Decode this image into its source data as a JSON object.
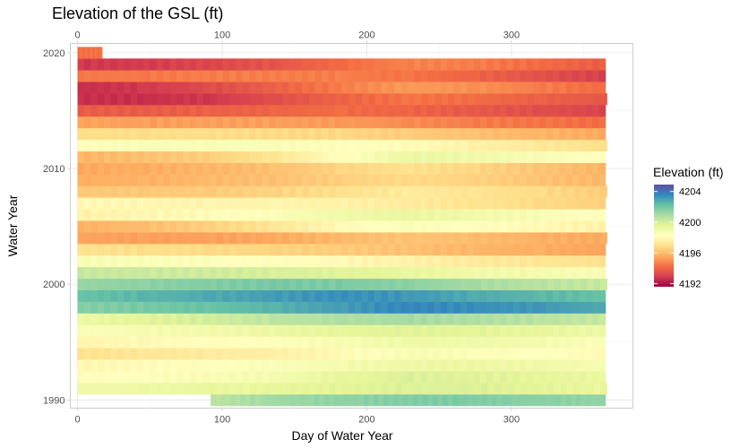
{
  "chart_data": {
    "type": "heatmap",
    "title": "Elevation of the GSL (ft)",
    "xlabel": "Day of Water Year",
    "ylabel": "Water Year",
    "x_ticks": [
      0,
      100,
      200,
      300
    ],
    "y_ticks": [
      1990,
      2000,
      2010,
      2020
    ],
    "xlim": [
      -5,
      384
    ],
    "ylim": [
      1989.3,
      2020.8
    ],
    "grid": true,
    "secondary_x_axis_top": true,
    "legend": {
      "title": "Elevation (ft)",
      "placement": "right",
      "ticks": [
        4192,
        4196,
        4200,
        4204
      ],
      "range": [
        4191.6,
        4204.9
      ],
      "palette": [
        "#9e0142",
        "#d53e4f",
        "#f46d43",
        "#fdae61",
        "#fee08b",
        "#ffffbf",
        "#e6f598",
        "#abdda4",
        "#66c2a5",
        "#3288bd",
        "#5e4fa2"
      ]
    },
    "series": [
      {
        "year": 1990,
        "start_day": 92,
        "end_day": 365,
        "values": [
          4200.5,
          4201.0,
          4201.3,
          4201.5,
          4201.7,
          4201.8,
          4201.6,
          4201.5,
          4201.4
        ]
      },
      {
        "year": 1991,
        "start_day": 0,
        "end_day": 366,
        "values": [
          4199.0,
          4199.1,
          4199.3,
          4199.4,
          4199.6,
          4199.8,
          4199.8,
          4199.6,
          4199.3
        ]
      },
      {
        "year": 1992,
        "start_day": 0,
        "end_day": 365,
        "values": [
          4198.2,
          4198.4,
          4198.6,
          4198.8,
          4199.4,
          4199.8,
          4199.7,
          4199.5,
          4199.3
        ]
      },
      {
        "year": 1993,
        "start_day": 0,
        "end_day": 365,
        "values": [
          4197.9,
          4198.1,
          4198.3,
          4198.5,
          4198.8,
          4199.1,
          4199.2,
          4199.0,
          4198.7
        ]
      },
      {
        "year": 1994,
        "start_day": 0,
        "end_day": 365,
        "values": [
          4197.0,
          4197.2,
          4197.4,
          4197.6,
          4198.0,
          4198.6,
          4198.5,
          4198.3,
          4198.0
        ]
      },
      {
        "year": 1995,
        "start_day": 0,
        "end_day": 365,
        "values": [
          4197.8,
          4198.0,
          4198.2,
          4198.4,
          4198.7,
          4199.0,
          4199.0,
          4198.8,
          4198.5
        ]
      },
      {
        "year": 1996,
        "start_day": 0,
        "end_day": 365,
        "values": [
          4198.5,
          4198.7,
          4198.9,
          4199.2,
          4199.5,
          4199.7,
          4199.6,
          4199.4,
          4199.1
        ]
      },
      {
        "year": 1997,
        "start_day": 0,
        "end_day": 365,
        "values": [
          4199.2,
          4199.6,
          4200.0,
          4200.5,
          4200.8,
          4201.0,
          4200.8,
          4200.6,
          4200.3
        ]
      },
      {
        "year": 1998,
        "start_day": 0,
        "end_day": 365,
        "values": [
          4201.6,
          4201.9,
          4202.2,
          4202.6,
          4203.1,
          4203.6,
          4203.4,
          4203.2,
          4202.8
        ]
      },
      {
        "year": 1999,
        "start_day": 0,
        "end_day": 365,
        "values": [
          4202.2,
          4202.5,
          4202.8,
          4203.1,
          4203.4,
          4203.2,
          4202.8,
          4202.5,
          4202.2
        ]
      },
      {
        "year": 2000,
        "start_day": 0,
        "end_day": 366,
        "values": [
          4201.3,
          4201.5,
          4201.7,
          4201.9,
          4201.8,
          4201.5,
          4201.0,
          4200.6,
          4200.3
        ]
      },
      {
        "year": 2001,
        "start_day": 0,
        "end_day": 365,
        "values": [
          4200.3,
          4200.2,
          4200.1,
          4199.9,
          4199.7,
          4199.4,
          4199.0,
          4198.8,
          4198.6
        ]
      },
      {
        "year": 2002,
        "start_day": 0,
        "end_day": 365,
        "values": [
          4198.6,
          4198.5,
          4198.4,
          4198.2,
          4198.0,
          4197.7,
          4197.4,
          4197.2,
          4197.0
        ]
      },
      {
        "year": 2003,
        "start_day": 0,
        "end_day": 365,
        "values": [
          4197.0,
          4196.9,
          4196.8,
          4196.6,
          4196.4,
          4196.1,
          4195.8,
          4195.6,
          4195.4
        ]
      },
      {
        "year": 2004,
        "start_day": 0,
        "end_day": 366,
        "values": [
          4195.4,
          4195.3,
          4195.3,
          4195.5,
          4195.9,
          4196.2,
          4196.0,
          4195.7,
          4195.5
        ]
      },
      {
        "year": 2005,
        "start_day": 0,
        "end_day": 365,
        "values": [
          4195.7,
          4196.0,
          4196.5,
          4197.2,
          4198.0,
          4198.5,
          4198.3,
          4198.0,
          4197.7
        ]
      },
      {
        "year": 2006,
        "start_day": 0,
        "end_day": 365,
        "values": [
          4197.7,
          4197.9,
          4198.1,
          4198.5,
          4199.0,
          4199.3,
          4199.0,
          4198.6,
          4198.2
        ]
      },
      {
        "year": 2007,
        "start_day": 0,
        "end_day": 365,
        "values": [
          4198.0,
          4197.9,
          4197.8,
          4197.8,
          4197.7,
          4197.4,
          4197.1,
          4196.8,
          4196.5
        ]
      },
      {
        "year": 2008,
        "start_day": 0,
        "end_day": 366,
        "values": [
          4196.3,
          4196.3,
          4196.4,
          4196.6,
          4197.0,
          4197.4,
          4197.1,
          4196.8,
          4196.4
        ]
      },
      {
        "year": 2009,
        "start_day": 0,
        "end_day": 365,
        "values": [
          4195.6,
          4195.7,
          4195.9,
          4196.1,
          4196.5,
          4196.8,
          4196.6,
          4196.2,
          4195.8
        ]
      },
      {
        "year": 2010,
        "start_day": 0,
        "end_day": 365,
        "values": [
          4195.5,
          4195.6,
          4195.8,
          4196.1,
          4196.6,
          4197.0,
          4196.7,
          4196.2,
          4195.8
        ]
      },
      {
        "year": 2011,
        "start_day": 0,
        "end_day": 365,
        "values": [
          4195.8,
          4196.1,
          4196.5,
          4197.2,
          4198.2,
          4199.2,
          4199.0,
          4198.6,
          4198.2
        ]
      },
      {
        "year": 2012,
        "start_day": 0,
        "end_day": 366,
        "values": [
          4198.4,
          4198.5,
          4198.5,
          4198.5,
          4198.4,
          4198.1,
          4197.7,
          4197.3,
          4196.9
        ]
      },
      {
        "year": 2013,
        "start_day": 0,
        "end_day": 365,
        "values": [
          4196.9,
          4196.9,
          4196.9,
          4196.8,
          4196.7,
          4196.4,
          4196.1,
          4195.8,
          4195.5
        ]
      },
      {
        "year": 2014,
        "start_day": 0,
        "end_day": 365,
        "values": [
          4195.4,
          4195.3,
          4195.3,
          4195.3,
          4195.2,
          4194.9,
          4194.6,
          4194.4,
          4194.2
        ]
      },
      {
        "year": 2015,
        "start_day": 0,
        "end_day": 365,
        "values": [
          4193.8,
          4193.8,
          4193.9,
          4194.0,
          4194.2,
          4194.0,
          4193.7,
          4193.4,
          4193.1
        ]
      },
      {
        "year": 2016,
        "start_day": 0,
        "end_day": 366,
        "values": [
          4192.6,
          4192.6,
          4192.8,
          4193.4,
          4194.0,
          4194.4,
          4194.2,
          4193.9,
          4193.6
        ]
      },
      {
        "year": 2017,
        "start_day": 0,
        "end_day": 365,
        "values": [
          4192.6,
          4192.8,
          4193.3,
          4193.9,
          4194.6,
          4195.2,
          4195.0,
          4194.6,
          4194.2
        ]
      },
      {
        "year": 2018,
        "start_day": 0,
        "end_day": 365,
        "values": [
          4194.5,
          4194.5,
          4194.6,
          4194.6,
          4194.6,
          4194.4,
          4194.0,
          4193.5,
          4193.0
        ]
      },
      {
        "year": 2019,
        "start_day": 0,
        "end_day": 365,
        "values": [
          4192.8,
          4192.9,
          4193.2,
          4193.6,
          4194.2,
          4194.7,
          4194.6,
          4194.2,
          4193.8
        ]
      },
      {
        "year": 2020,
        "start_day": 0,
        "end_day": 17,
        "values": [
          4194.3,
          4194.3
        ]
      }
    ]
  }
}
